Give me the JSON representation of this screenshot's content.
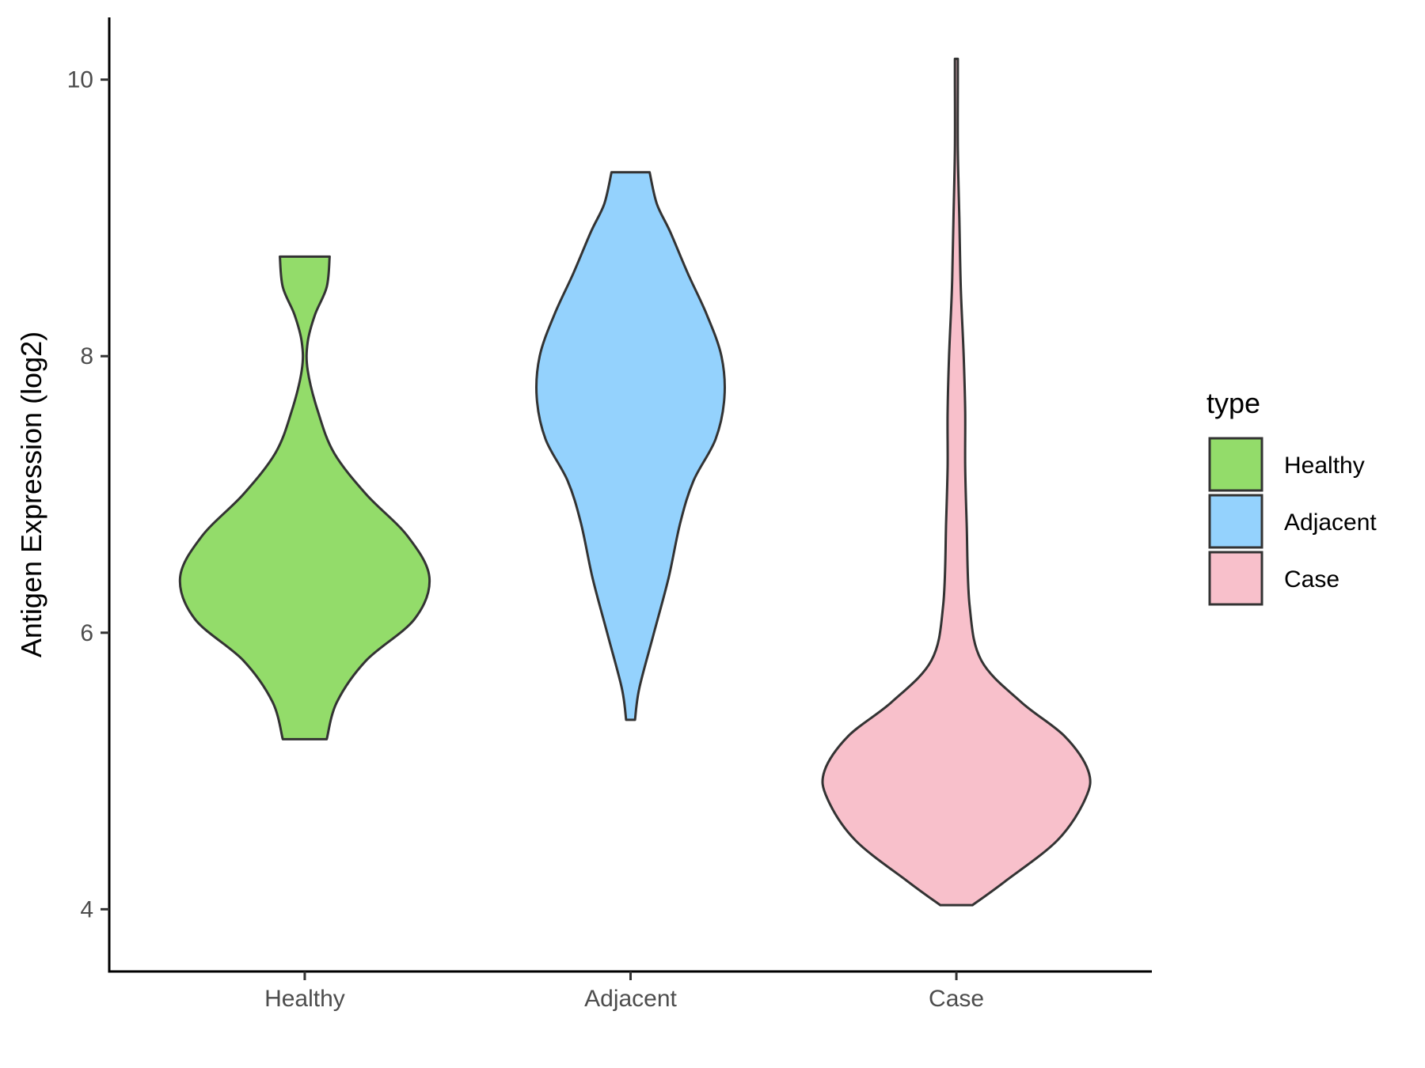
{
  "chart_data": {
    "type": "violin",
    "ylabel": "Antigen Expression (log2)",
    "xlabel": "",
    "categories": [
      "Healthy",
      "Adjacent",
      "Case"
    ],
    "ylim": [
      3.55,
      10.45
    ],
    "yticks": [
      4,
      6,
      8,
      10
    ],
    "grid": false,
    "legend": {
      "title": "type",
      "position": "right",
      "entries": [
        {
          "label": "Healthy",
          "color": "#93DC6A"
        },
        {
          "label": "Adjacent",
          "color": "#94D2FD"
        },
        {
          "label": "Case",
          "color": "#F8C0CB"
        }
      ]
    },
    "series": [
      {
        "name": "Healthy",
        "color": "#93DC6A",
        "density_profile": [
          [
            5.23,
            0.15
          ],
          [
            5.5,
            0.22
          ],
          [
            5.8,
            0.42
          ],
          [
            6.1,
            0.75
          ],
          [
            6.4,
            0.85
          ],
          [
            6.7,
            0.7
          ],
          [
            7.0,
            0.42
          ],
          [
            7.3,
            0.2
          ],
          [
            7.6,
            0.09
          ],
          [
            7.9,
            0.02
          ],
          [
            8.1,
            0.02
          ],
          [
            8.3,
            0.07
          ],
          [
            8.5,
            0.15
          ],
          [
            8.72,
            0.17
          ]
        ]
      },
      {
        "name": "Adjacent",
        "color": "#94D2FD",
        "density_profile": [
          [
            5.37,
            0.03
          ],
          [
            5.6,
            0.06
          ],
          [
            6.0,
            0.16
          ],
          [
            6.4,
            0.26
          ],
          [
            6.8,
            0.34
          ],
          [
            7.1,
            0.43
          ],
          [
            7.4,
            0.58
          ],
          [
            7.7,
            0.64
          ],
          [
            8.0,
            0.62
          ],
          [
            8.3,
            0.52
          ],
          [
            8.6,
            0.39
          ],
          [
            8.9,
            0.27
          ],
          [
            9.1,
            0.18
          ],
          [
            9.33,
            0.13
          ]
        ]
      },
      {
        "name": "Case",
        "color": "#F8C0CB",
        "density_profile": [
          [
            4.03,
            0.11
          ],
          [
            4.2,
            0.33
          ],
          [
            4.5,
            0.69
          ],
          [
            4.8,
            0.88
          ],
          [
            5.0,
            0.9
          ],
          [
            5.25,
            0.74
          ],
          [
            5.5,
            0.44
          ],
          [
            5.8,
            0.17
          ],
          [
            6.2,
            0.09
          ],
          [
            6.8,
            0.07
          ],
          [
            7.2,
            0.06
          ],
          [
            7.6,
            0.06
          ],
          [
            8.0,
            0.05
          ],
          [
            8.5,
            0.03
          ],
          [
            9.0,
            0.02
          ],
          [
            9.5,
            0.01
          ],
          [
            10.0,
            0.01
          ],
          [
            10.15,
            0.01
          ]
        ]
      }
    ]
  }
}
